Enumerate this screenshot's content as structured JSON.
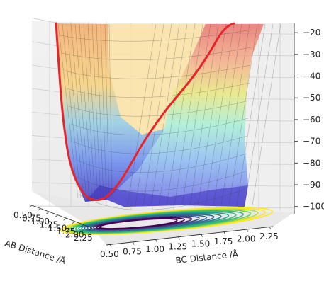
{
  "chart_data": {
    "type": "surface3d",
    "title": "",
    "x_axis": {
      "label": "AB Distance /Å",
      "ticks": [
        "0.50",
        "0.75",
        "1.00",
        "1.25",
        "1.50",
        "1.75",
        "2.00",
        "2.25"
      ],
      "range": [
        0.5,
        2.4
      ]
    },
    "y_axis": {
      "label": "BC Distance /Å",
      "ticks": [
        "0.50",
        "0.75",
        "1.00",
        "1.25",
        "1.50",
        "1.75",
        "2.00",
        "2.25"
      ],
      "range": [
        0.5,
        2.4
      ]
    },
    "z_axis": {
      "label": "",
      "ticks": [
        "−20",
        "−30",
        "−40",
        "−50",
        "−60",
        "−70",
        "−80",
        "−90",
        "−100"
      ],
      "values": [
        -20,
        -30,
        -40,
        -50,
        -60,
        -70,
        -80,
        -90,
        -100
      ],
      "range": [
        -104,
        -18
      ]
    },
    "colormap": "jet",
    "surface_alpha": 0.45,
    "contour_projection": "viridis",
    "trajectory_color": "#e8232a",
    "grid": true
  }
}
